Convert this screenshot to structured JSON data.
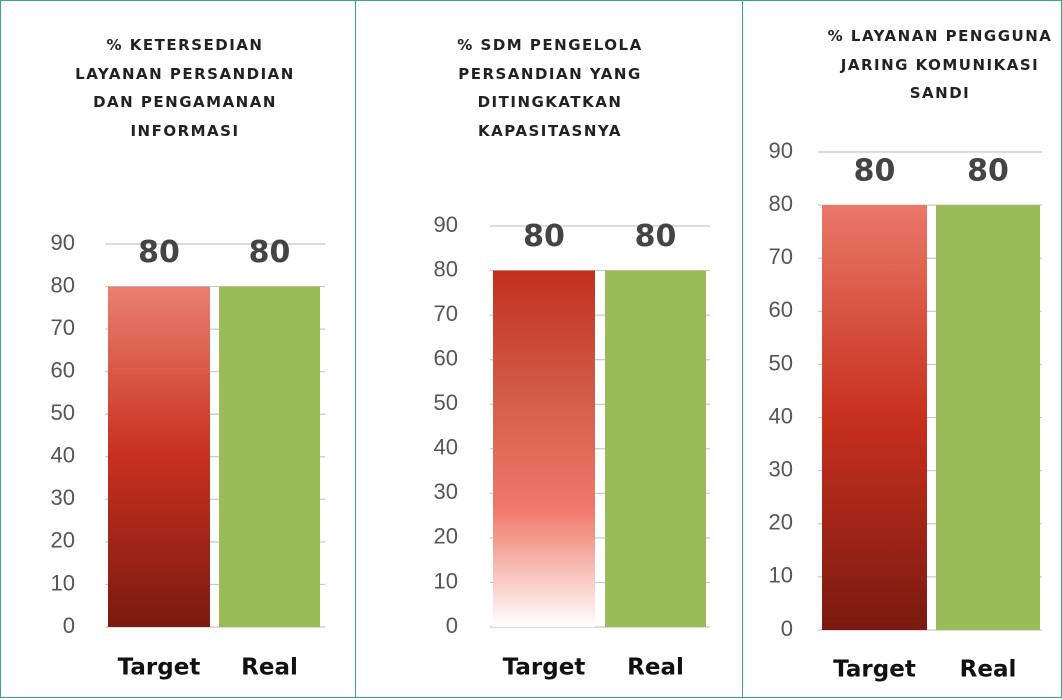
{
  "chart_data": [
    {
      "type": "bar",
      "title": "% KETERSEDIAN LAYANAN PERSANDIAN DAN PENGAMANAN INFORMASI",
      "categories": [
        "Target",
        "Real"
      ],
      "values": [
        80,
        80
      ],
      "colors": [
        [
          "#ea8070",
          "#c8301e",
          "#7a1a10"
        ],
        "#9bbb59"
      ],
      "ylim": [
        0,
        90
      ],
      "yticks": [
        0,
        10,
        20,
        30,
        40,
        50,
        60,
        70,
        80,
        90
      ],
      "grid": true
    },
    {
      "type": "bar",
      "title": "% SDM PENGELOLA PERSANDIAN YANG DITINGKATKAN KAPASITASNYA",
      "categories": [
        "Target",
        "Real"
      ],
      "values": [
        80,
        80
      ],
      "colors": [
        [
          "#c0301c",
          "#d25a48",
          "#ef7868",
          "#ffffff"
        ],
        "#9bbb59"
      ],
      "ylim": [
        0,
        90
      ],
      "yticks": [
        0,
        10,
        20,
        30,
        40,
        50,
        60,
        70,
        80,
        90
      ],
      "grid": true
    },
    {
      "type": "bar",
      "title": "% LAYANAN PENGGUNA JARING KOMUNIKASI SANDI",
      "categories": [
        "Target",
        "Real"
      ],
      "values": [
        80,
        80
      ],
      "colors": [
        [
          "#ea7868",
          "#c8301e",
          "#7a1a10"
        ],
        "#9bbb59"
      ],
      "ylim": [
        0,
        90
      ],
      "yticks": [
        0,
        10,
        20,
        30,
        40,
        50,
        60,
        70,
        80,
        90
      ],
      "grid": true
    }
  ]
}
